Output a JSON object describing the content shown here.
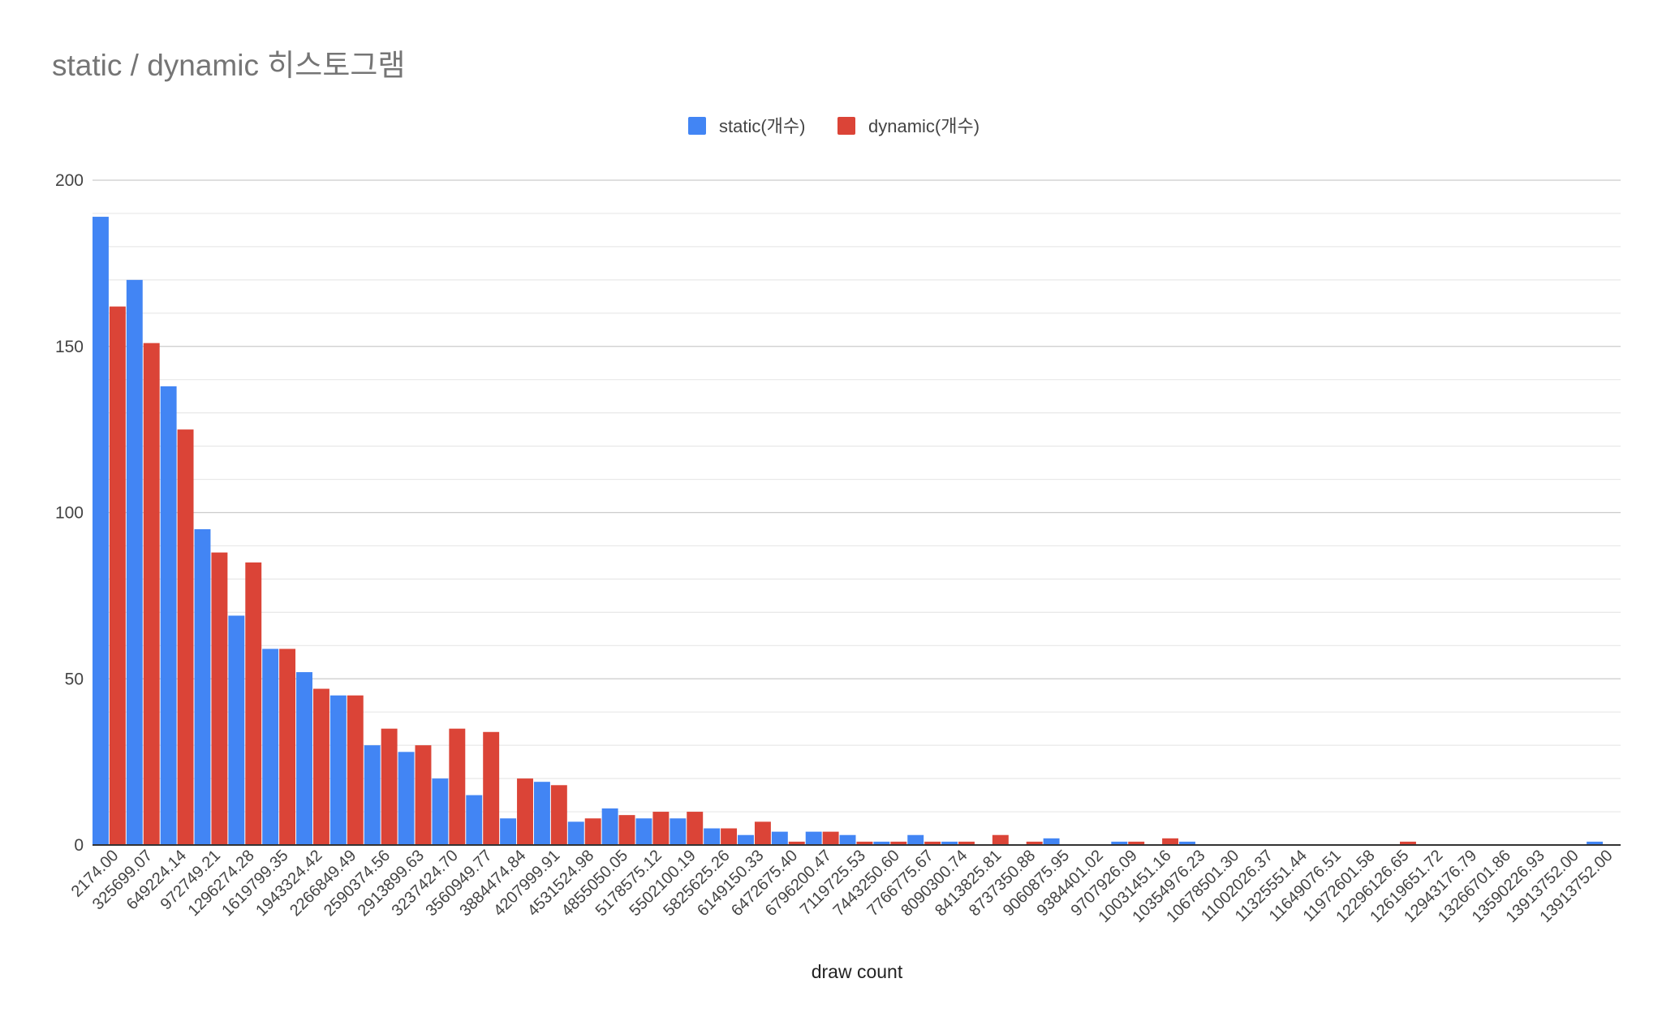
{
  "chart_data": {
    "type": "bar",
    "title": "static / dynamic 히스토그램",
    "xlabel": "draw count",
    "ylabel": "",
    "ylim": [
      0,
      200
    ],
    "yticks": [
      0,
      50,
      100,
      150,
      200
    ],
    "grid": true,
    "legend_position": "top-center",
    "categories": [
      "2174.00",
      "325699.07",
      "649224.14",
      "972749.21",
      "1296274.28",
      "1619799.35",
      "1943324.42",
      "2266849.49",
      "2590374.56",
      "2913899.63",
      "3237424.70",
      "3560949.77",
      "3884474.84",
      "4207999.91",
      "4531524.98",
      "4855050.05",
      "5178575.12",
      "5502100.19",
      "5825625.26",
      "6149150.33",
      "6472675.40",
      "6796200.47",
      "7119725.53",
      "7443250.60",
      "7766775.67",
      "8090300.74",
      "8413825.81",
      "8737350.88",
      "9060875.95",
      "9384401.02",
      "9707926.09",
      "10031451.16",
      "10354976.23",
      "10678501.30",
      "11002026.37",
      "11325551.44",
      "11649076.51",
      "11972601.58",
      "12296126.65",
      "12619651.72",
      "12943176.79",
      "13266701.86",
      "13590226.93",
      "13913752.00",
      "13913752.00"
    ],
    "series": [
      {
        "name": "static(개수)",
        "color": "#4285f4",
        "values": [
          189,
          170,
          138,
          95,
          69,
          59,
          52,
          45,
          30,
          28,
          20,
          15,
          8,
          19,
          7,
          11,
          8,
          8,
          5,
          3,
          4,
          4,
          3,
          1,
          3,
          1,
          0,
          0,
          2,
          0,
          1,
          0,
          1,
          0,
          0,
          0,
          0,
          0,
          0,
          0,
          0,
          0,
          0,
          0,
          1
        ]
      },
      {
        "name": "dynamic(개수)",
        "color": "#db4437",
        "values": [
          162,
          151,
          125,
          88,
          85,
          59,
          47,
          45,
          35,
          30,
          35,
          34,
          20,
          18,
          8,
          9,
          10,
          10,
          5,
          7,
          1,
          4,
          1,
          1,
          1,
          1,
          3,
          1,
          0,
          0,
          1,
          2,
          0,
          0,
          0,
          0,
          0,
          0,
          1,
          0,
          0,
          0,
          0,
          0,
          0
        ]
      }
    ]
  }
}
